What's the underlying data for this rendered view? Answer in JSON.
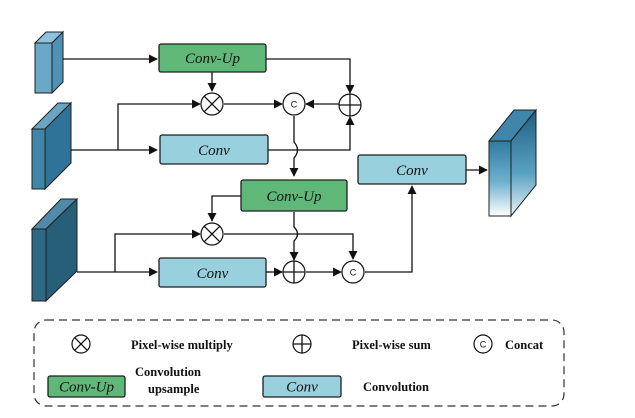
{
  "diagram": {
    "blocks": {
      "conv_up_top": "Conv-Up",
      "conv_top": "Conv",
      "conv_up_mid": "Conv-Up",
      "conv_bottom": "Conv",
      "conv_out": "Conv"
    },
    "concat_symbol": "C"
  },
  "legend": {
    "multiply_label": "Pixel-wise multiply",
    "sum_label": "Pixel-wise sum",
    "concat_symbol": "C",
    "concat_label": "Concat",
    "conv_up_sample": "Conv-Up",
    "conv_up_label_line1": "Convolution",
    "conv_up_label_line2": "upsample",
    "conv_sample": "Conv",
    "conv_label": "Convolution"
  },
  "colors": {
    "conv_up_fill": "#5fb878",
    "conv_fill": "#98d0de",
    "feature_small": "#6aa8c8",
    "feature_mid": "#3f86a8",
    "feature_large": "#2f6a84"
  }
}
